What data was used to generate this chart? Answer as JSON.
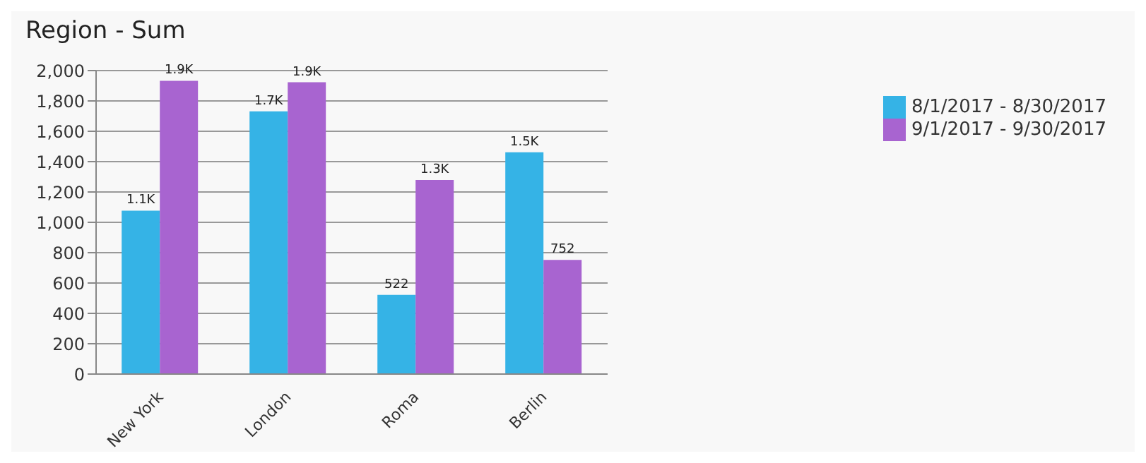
{
  "chart_data": {
    "type": "bar",
    "title": "Region - Sum",
    "categories": [
      "New York",
      "London",
      "Roma",
      "Berlin"
    ],
    "series": [
      {
        "name": "8/1/2017 - 8/30/2017",
        "color": "#35b3e6",
        "values": [
          1077,
          1731,
          522,
          1462
        ],
        "value_labels": [
          "1.1K",
          "1.7K",
          "522",
          "1.5K"
        ]
      },
      {
        "name": "9/1/2017 - 9/30/2017",
        "color": "#a864d0",
        "values": [
          1933,
          1923,
          1279,
          752
        ],
        "value_labels": [
          "1.9K",
          "1.9K",
          "1.3K",
          "752"
        ]
      }
    ],
    "ylim": [
      0,
      2000
    ],
    "yticks": [
      {
        "value": 0,
        "label": "0"
      },
      {
        "value": 200,
        "label": "200"
      },
      {
        "value": 400,
        "label": "400"
      },
      {
        "value": 600,
        "label": "600"
      },
      {
        "value": 800,
        "label": "800"
      },
      {
        "value": 1000,
        "label": "1,000"
      },
      {
        "value": 1200,
        "label": "1,200"
      },
      {
        "value": 1400,
        "label": "1,400"
      },
      {
        "value": 1600,
        "label": "1,600"
      },
      {
        "value": 1800,
        "label": "1,800"
      },
      {
        "value": 2000,
        "label": "2,000"
      }
    ],
    "grid": "y",
    "legend": "top right"
  }
}
